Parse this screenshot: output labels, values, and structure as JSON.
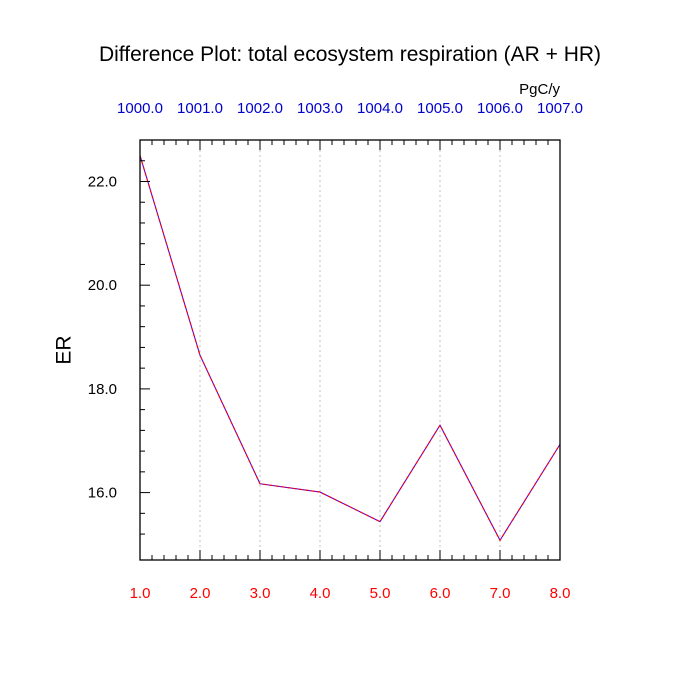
{
  "chart_data": {
    "type": "line",
    "title": "Difference Plot: total ecosystem respiration (AR + HR)",
    "units": "PgC/y",
    "ylabel": "ER",
    "xlabel": "",
    "x": [
      1.0,
      2.0,
      3.0,
      4.0,
      5.0,
      6.0,
      7.0,
      8.0
    ],
    "x_tick_labels": [
      "1.0",
      "2.0",
      "3.0",
      "4.0",
      "5.0",
      "6.0",
      "7.0",
      "8.0"
    ],
    "top_tick_labels": [
      "1000.0",
      "1001.0",
      "1002.0",
      "1003.0",
      "1004.0",
      "1005.0",
      "1006.0",
      "1007.0"
    ],
    "y_ticks": [
      16.0,
      18.0,
      20.0,
      22.0
    ],
    "y_tick_labels": [
      "16.0",
      "18.0",
      "20.0",
      "22.0"
    ],
    "xlim": [
      1.0,
      8.0
    ],
    "ylim": [
      14.7,
      22.8
    ],
    "series": [
      {
        "values": [
          22.5,
          18.65,
          16.17,
          16.01,
          15.44,
          17.3,
          15.08,
          16.93
        ],
        "color": "#6600cc",
        "dash_color": "#ff0000",
        "line_style": "dashed"
      }
    ],
    "grid": "vertical dotted",
    "colors": {
      "top_axis_labels": "#0000cc",
      "bottom_axis_labels": "#ff0000",
      "axis": "#000000",
      "grid": "#c0c0c0"
    }
  }
}
